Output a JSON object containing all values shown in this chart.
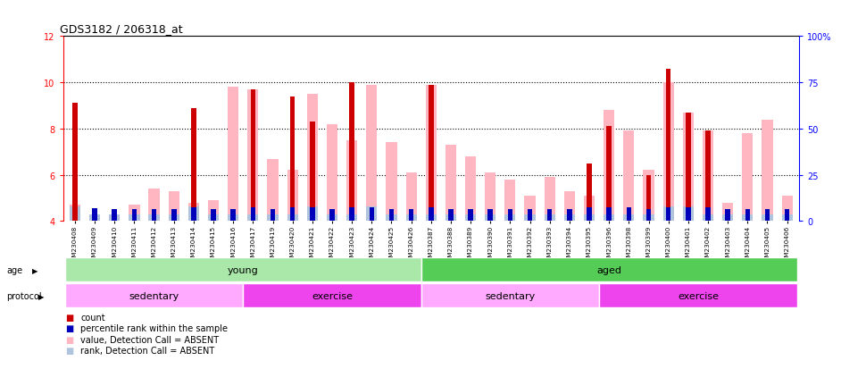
{
  "title": "GDS3182 / 206318_at",
  "samples": [
    "GSM230408",
    "GSM230409",
    "GSM230410",
    "GSM230411",
    "GSM230412",
    "GSM230413",
    "GSM230414",
    "GSM230415",
    "GSM230416",
    "GSM230417",
    "GSM230419",
    "GSM230420",
    "GSM230421",
    "GSM230422",
    "GSM230423",
    "GSM230424",
    "GSM230425",
    "GSM230426",
    "GSM230387",
    "GSM230388",
    "GSM230389",
    "GSM230390",
    "GSM230391",
    "GSM230392",
    "GSM230393",
    "GSM230394",
    "GSM230395",
    "GSM230396",
    "GSM230398",
    "GSM230399",
    "GSM230400",
    "GSM230401",
    "GSM230402",
    "GSM230403",
    "GSM230404",
    "GSM230405",
    "GSM230406"
  ],
  "value_absent": [
    4.7,
    4.2,
    4.1,
    4.7,
    5.4,
    5.3,
    4.8,
    4.9,
    9.8,
    9.7,
    6.7,
    6.2,
    9.5,
    8.2,
    7.5,
    9.9,
    7.4,
    6.1,
    9.9,
    7.3,
    6.8,
    6.1,
    5.8,
    5.1,
    5.9,
    5.3,
    5.1,
    8.8,
    7.9,
    6.2,
    10.0,
    8.7,
    7.9,
    4.8,
    7.8,
    8.4,
    5.1
  ],
  "rank_absent": [
    4.65,
    4.3,
    4.3,
    4.3,
    4.3,
    4.3,
    4.65,
    4.3,
    4.3,
    4.3,
    4.3,
    4.3,
    4.65,
    4.3,
    4.3,
    4.65,
    4.3,
    4.3,
    4.3,
    4.3,
    4.3,
    4.3,
    4.3,
    4.3,
    4.3,
    4.3,
    4.3,
    4.3,
    4.3,
    4.3,
    4.65,
    4.65,
    4.3,
    4.3,
    4.3,
    4.3,
    4.3
  ],
  "count_val": [
    9.1,
    0,
    0,
    0,
    0,
    0,
    8.9,
    0,
    0,
    9.7,
    0,
    9.4,
    8.3,
    0,
    10.0,
    0,
    0,
    0,
    9.9,
    0,
    0,
    0,
    0,
    0,
    0,
    0,
    6.5,
    8.1,
    0,
    6.0,
    10.6,
    8.7,
    7.9,
    0,
    0,
    0,
    0
  ],
  "percentile_val": [
    0,
    4.55,
    4.5,
    4.5,
    4.5,
    4.5,
    4.6,
    4.5,
    4.5,
    4.6,
    4.5,
    4.6,
    4.6,
    4.5,
    4.6,
    4.6,
    4.5,
    4.5,
    4.6,
    4.5,
    4.5,
    4.5,
    4.5,
    4.5,
    4.5,
    4.5,
    4.6,
    4.6,
    4.6,
    4.5,
    4.6,
    4.6,
    4.6,
    4.5,
    4.5,
    4.5,
    4.5
  ],
  "ylim": [
    4,
    12
  ],
  "yticks_left": [
    4,
    6,
    8,
    10,
    12
  ],
  "yticks_right": [
    0,
    25,
    50,
    75,
    100
  ],
  "y_right_labels": [
    "0",
    "25",
    "50",
    "75",
    "100%"
  ],
  "age_groups": [
    {
      "label": "young",
      "start": 0,
      "end": 18,
      "color": "#aae8aa"
    },
    {
      "label": "aged",
      "start": 18,
      "end": 37,
      "color": "#55cc55"
    }
  ],
  "protocol_groups": [
    {
      "label": "sedentary",
      "start": 0,
      "end": 9,
      "color": "#ffaaff"
    },
    {
      "label": "exercise",
      "start": 9,
      "end": 18,
      "color": "#ee44ee"
    },
    {
      "label": "sedentary",
      "start": 18,
      "end": 27,
      "color": "#ffaaff"
    },
    {
      "label": "exercise",
      "start": 27,
      "end": 37,
      "color": "#ee44ee"
    }
  ],
  "color_count": "#cc0000",
  "color_percentile": "#0000bb",
  "color_value_absent": "#ffb6c1",
  "color_rank_absent": "#b0c4de",
  "background_plot": "#ffffff",
  "ybase": 4.0,
  "n_samples": 37
}
